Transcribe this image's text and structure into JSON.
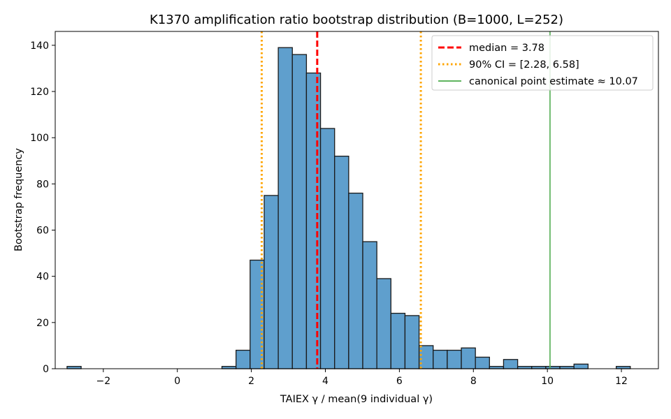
{
  "chart_data": {
    "type": "bar",
    "title": "K1370 amplification ratio bootstrap distribution (B=1000, L=252)",
    "xlabel": "TAIEX γ / mean(9 individual γ)",
    "ylabel": "Bootstrap frequency",
    "xlim": [
      -3.3,
      13.0
    ],
    "ylim": [
      0,
      146
    ],
    "xticks": [
      -2,
      0,
      2,
      4,
      6,
      8,
      10,
      12
    ],
    "xtick_labels": [
      "−2",
      "0",
      "2",
      "4",
      "6",
      "8",
      "10",
      "12"
    ],
    "yticks": [
      0,
      20,
      40,
      60,
      80,
      100,
      120,
      140
    ],
    "ytick_labels": [
      "0",
      "20",
      "40",
      "60",
      "80",
      "100",
      "120",
      "140"
    ],
    "bin_start": -2.98,
    "bin_width": 0.3805,
    "values": [
      1,
      0,
      0,
      0,
      0,
      0,
      0,
      0,
      0,
      0,
      0,
      1,
      8,
      47,
      75,
      139,
      136,
      128,
      104,
      92,
      76,
      55,
      39,
      24,
      23,
      10,
      8,
      8,
      9,
      5,
      1,
      4,
      1,
      1,
      1,
      1,
      2,
      0,
      0,
      1
    ],
    "colors": {
      "bar": "#5f9fcd",
      "median": "#ff0000",
      "ci": "#ffa500",
      "point": "#5fb45f"
    },
    "reference_lines": [
      {
        "name": "median = 3.78",
        "x": 3.78,
        "style": "dashed",
        "color": "#ff0000"
      },
      {
        "name": "90% CI = [2.28, 6.58]",
        "x": 2.28,
        "style": "dotted",
        "color": "#ffa500"
      },
      {
        "name": "",
        "x": 6.58,
        "style": "dotted",
        "color": "#ffa500"
      },
      {
        "name": "canonical point estimate ≈ 10.07",
        "x": 10.07,
        "style": "solid",
        "color": "#5fb45f"
      }
    ],
    "legend": {
      "placement": "top-right",
      "entries": [
        {
          "label": "median = 3.78",
          "style": "dashed",
          "color": "#ff0000"
        },
        {
          "label": "90% CI = [2.28, 6.58]",
          "style": "dotted",
          "color": "#ffa500"
        },
        {
          "label": "canonical point estimate ≈ 10.07",
          "style": "solid",
          "color": "#5fb45f"
        }
      ]
    },
    "grid": false
  }
}
